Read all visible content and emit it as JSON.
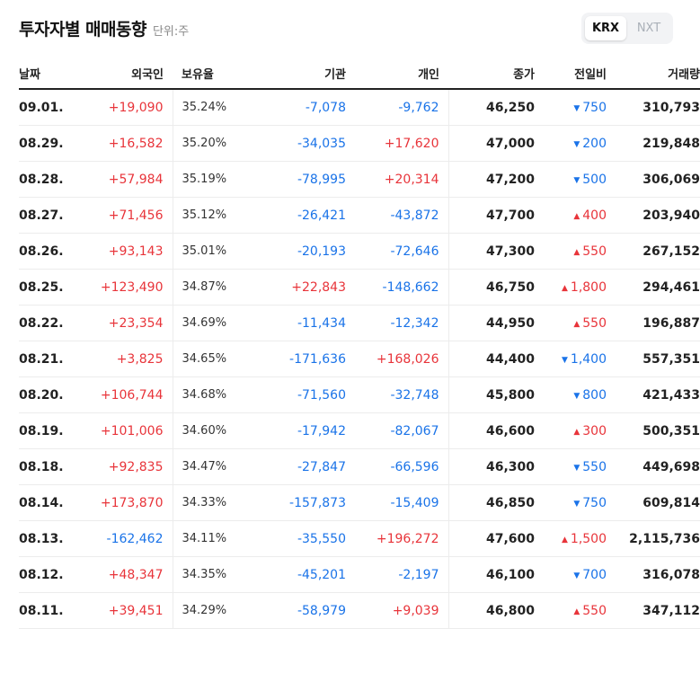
{
  "header": {
    "title": "투자자별 매매동향",
    "unit": "단위:주"
  },
  "market_toggle": {
    "options": [
      "KRX",
      "NXT"
    ],
    "active": "KRX"
  },
  "columns": {
    "date": "날짜",
    "foreign": "외국인",
    "holding": "보유율",
    "institution": "기관",
    "individual": "개인",
    "close": "종가",
    "change": "전일비",
    "volume": "거래량"
  },
  "colors": {
    "up": "#e8343a",
    "down": "#1a73e8"
  },
  "rows": [
    {
      "date": "09.01.",
      "foreign": "+19,090",
      "holding": "35.24%",
      "institution": "-7,078",
      "individual": "-9,762",
      "close": "46,250",
      "change_dir": "down",
      "change": "750",
      "volume": "310,793"
    },
    {
      "date": "08.29.",
      "foreign": "+16,582",
      "holding": "35.20%",
      "institution": "-34,035",
      "individual": "+17,620",
      "close": "47,000",
      "change_dir": "down",
      "change": "200",
      "volume": "219,848"
    },
    {
      "date": "08.28.",
      "foreign": "+57,984",
      "holding": "35.19%",
      "institution": "-78,995",
      "individual": "+20,314",
      "close": "47,200",
      "change_dir": "down",
      "change": "500",
      "volume": "306,069"
    },
    {
      "date": "08.27.",
      "foreign": "+71,456",
      "holding": "35.12%",
      "institution": "-26,421",
      "individual": "-43,872",
      "close": "47,700",
      "change_dir": "up",
      "change": "400",
      "volume": "203,940"
    },
    {
      "date": "08.26.",
      "foreign": "+93,143",
      "holding": "35.01%",
      "institution": "-20,193",
      "individual": "-72,646",
      "close": "47,300",
      "change_dir": "up",
      "change": "550",
      "volume": "267,152"
    },
    {
      "date": "08.25.",
      "foreign": "+123,490",
      "holding": "34.87%",
      "institution": "+22,843",
      "individual": "-148,662",
      "close": "46,750",
      "change_dir": "up",
      "change": "1,800",
      "volume": "294,461"
    },
    {
      "date": "08.22.",
      "foreign": "+23,354",
      "holding": "34.69%",
      "institution": "-11,434",
      "individual": "-12,342",
      "close": "44,950",
      "change_dir": "up",
      "change": "550",
      "volume": "196,887"
    },
    {
      "date": "08.21.",
      "foreign": "+3,825",
      "holding": "34.65%",
      "institution": "-171,636",
      "individual": "+168,026",
      "close": "44,400",
      "change_dir": "down",
      "change": "1,400",
      "volume": "557,351"
    },
    {
      "date": "08.20.",
      "foreign": "+106,744",
      "holding": "34.68%",
      "institution": "-71,560",
      "individual": "-32,748",
      "close": "45,800",
      "change_dir": "down",
      "change": "800",
      "volume": "421,433"
    },
    {
      "date": "08.19.",
      "foreign": "+101,006",
      "holding": "34.60%",
      "institution": "-17,942",
      "individual": "-82,067",
      "close": "46,600",
      "change_dir": "up",
      "change": "300",
      "volume": "500,351"
    },
    {
      "date": "08.18.",
      "foreign": "+92,835",
      "holding": "34.47%",
      "institution": "-27,847",
      "individual": "-66,596",
      "close": "46,300",
      "change_dir": "down",
      "change": "550",
      "volume": "449,698"
    },
    {
      "date": "08.14.",
      "foreign": "+173,870",
      "holding": "34.33%",
      "institution": "-157,873",
      "individual": "-15,409",
      "close": "46,850",
      "change_dir": "down",
      "change": "750",
      "volume": "609,814"
    },
    {
      "date": "08.13.",
      "foreign": "-162,462",
      "holding": "34.11%",
      "institution": "-35,550",
      "individual": "+196,272",
      "close": "47,600",
      "change_dir": "up",
      "change": "1,500",
      "volume": "2,115,736"
    },
    {
      "date": "08.12.",
      "foreign": "+48,347",
      "holding": "34.35%",
      "institution": "-45,201",
      "individual": "-2,197",
      "close": "46,100",
      "change_dir": "down",
      "change": "700",
      "volume": "316,078"
    },
    {
      "date": "08.11.",
      "foreign": "+39,451",
      "holding": "34.29%",
      "institution": "-58,979",
      "individual": "+9,039",
      "close": "46,800",
      "change_dir": "up",
      "change": "550",
      "volume": "347,112"
    }
  ]
}
